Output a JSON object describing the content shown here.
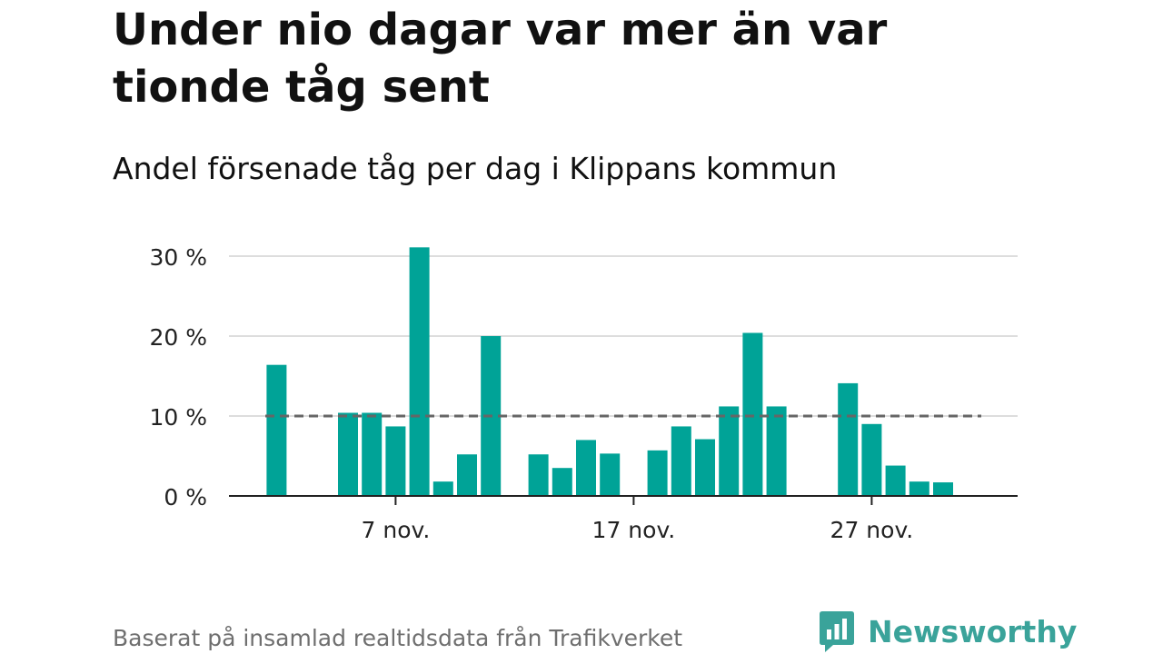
{
  "title": "Under nio dagar var mer än var tionde tåg sent",
  "subtitle": "Andel försenade tåg per dag i Klippans kommun",
  "source": "Baserat på insamlad realtidsdata från Trafikverket",
  "brand": {
    "name": "Newsworthy",
    "color": "#3aa39a"
  },
  "colors": {
    "bar": "#00a397",
    "grid": "#dddddd",
    "axis": "#222222",
    "reference": "#666666"
  },
  "chart_data": {
    "type": "bar",
    "x_unit": "day of November",
    "x": [
      1,
      2,
      3,
      4,
      5,
      6,
      7,
      8,
      9,
      10,
      11,
      12,
      13,
      14,
      15,
      16,
      17,
      18,
      19,
      20,
      21,
      22,
      23,
      24,
      25,
      26,
      27,
      28,
      29,
      30
    ],
    "values": [
      null,
      16.4,
      null,
      null,
      10.4,
      10.4,
      8.7,
      31.1,
      1.8,
      5.2,
      20.0,
      null,
      5.2,
      3.5,
      7.0,
      5.3,
      null,
      5.7,
      8.7,
      7.1,
      11.2,
      20.4,
      11.2,
      null,
      null,
      14.1,
      9.0,
      3.8,
      1.8,
      1.7
    ],
    "unit": "%",
    "ylim": [
      0,
      30
    ],
    "y_ticks": [
      {
        "value": 0,
        "label": "0 %"
      },
      {
        "value": 10,
        "label": "10 %"
      },
      {
        "value": 20,
        "label": "20 %"
      },
      {
        "value": 30,
        "label": "30 %"
      }
    ],
    "x_ticks": [
      {
        "day": 7,
        "label": "7 nov."
      },
      {
        "day": 17,
        "label": "17 nov."
      },
      {
        "day": 27,
        "label": "27 nov."
      }
    ],
    "reference_line": {
      "value": 10,
      "style": "dashed"
    },
    "grid": true,
    "legend": "none"
  }
}
